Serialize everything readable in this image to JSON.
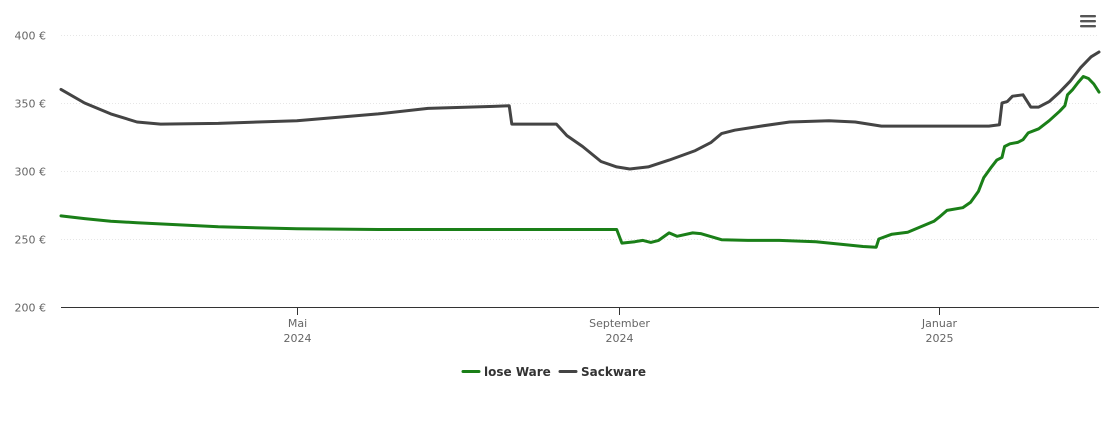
{
  "chart_data": {
    "type": "line",
    "title": "",
    "xlabel": "",
    "ylabel": "",
    "ylim": [
      200,
      400
    ],
    "y_ticks": [
      {
        "value": 200,
        "label": "200 €"
      },
      {
        "value": 250,
        "label": "250 €"
      },
      {
        "value": 300,
        "label": "300 €"
      },
      {
        "value": 350,
        "label": "350 €"
      },
      {
        "value": 400,
        "label": "400 €"
      }
    ],
    "xlim": [
      "2024-02-01",
      "2025-03-03"
    ],
    "x_ticks": [
      {
        "date": "2024-05-01",
        "month": "Mai",
        "year": "2024"
      },
      {
        "date": "2024-09-01",
        "month": "September",
        "year": "2024"
      },
      {
        "date": "2025-01-01",
        "month": "Januar",
        "year": "2025"
      }
    ],
    "grid": true,
    "legend_position": "bottom-center",
    "series": [
      {
        "name": "lose Ware",
        "color": "#1a7f18",
        "points": [
          [
            "2024-02-01",
            267
          ],
          [
            "2024-02-10",
            265
          ],
          [
            "2024-02-20",
            263
          ],
          [
            "2024-03-01",
            262
          ],
          [
            "2024-04-01",
            259
          ],
          [
            "2024-05-01",
            257.5
          ],
          [
            "2024-06-01",
            257
          ],
          [
            "2024-07-01",
            257
          ],
          [
            "2024-08-01",
            257
          ],
          [
            "2024-08-31",
            257
          ],
          [
            "2024-09-02",
            247
          ],
          [
            "2024-09-07",
            248
          ],
          [
            "2024-09-10",
            249
          ],
          [
            "2024-09-13",
            247.5
          ],
          [
            "2024-09-16",
            249
          ],
          [
            "2024-09-20",
            254.5
          ],
          [
            "2024-09-23",
            252
          ],
          [
            "2024-09-29",
            254.5
          ],
          [
            "2024-10-02",
            254
          ],
          [
            "2024-10-10",
            249.5
          ],
          [
            "2024-10-20",
            249
          ],
          [
            "2024-11-01",
            249
          ],
          [
            "2024-11-15",
            248
          ],
          [
            "2024-11-25",
            246
          ],
          [
            "2024-12-03",
            244.5
          ],
          [
            "2024-12-08",
            244
          ],
          [
            "2024-12-09",
            250
          ],
          [
            "2024-12-14",
            253.5
          ],
          [
            "2024-12-20",
            255
          ],
          [
            "2024-12-25",
            259
          ],
          [
            "2024-12-30",
            263
          ],
          [
            "2025-01-01",
            266
          ],
          [
            "2025-01-04",
            271
          ],
          [
            "2025-01-10",
            273
          ],
          [
            "2025-01-13",
            277
          ],
          [
            "2025-01-16",
            285
          ],
          [
            "2025-01-18",
            295
          ],
          [
            "2025-01-21",
            303
          ],
          [
            "2025-01-23",
            308
          ],
          [
            "2025-01-25",
            310
          ],
          [
            "2025-01-26",
            318
          ],
          [
            "2025-01-28",
            320
          ],
          [
            "2025-01-31",
            321
          ],
          [
            "2025-02-02",
            323
          ],
          [
            "2025-02-04",
            328
          ],
          [
            "2025-02-08",
            331
          ],
          [
            "2025-02-12",
            337
          ],
          [
            "2025-02-16",
            344
          ],
          [
            "2025-02-18",
            348
          ],
          [
            "2025-02-19",
            356
          ],
          [
            "2025-02-21",
            360
          ],
          [
            "2025-02-23",
            365
          ],
          [
            "2025-02-25",
            369.5
          ],
          [
            "2025-02-27",
            368
          ],
          [
            "2025-03-01",
            364
          ],
          [
            "2025-03-03",
            358
          ]
        ]
      },
      {
        "name": "Sackware",
        "color": "#444444",
        "points": [
          [
            "2024-02-01",
            360
          ],
          [
            "2024-02-10",
            350
          ],
          [
            "2024-02-20",
            342
          ],
          [
            "2024-03-01",
            336
          ],
          [
            "2024-03-10",
            334.5
          ],
          [
            "2024-04-01",
            335
          ],
          [
            "2024-05-01",
            337
          ],
          [
            "2024-06-01",
            342
          ],
          [
            "2024-06-20",
            346
          ],
          [
            "2024-07-15",
            347.5
          ],
          [
            "2024-07-21",
            348
          ],
          [
            "2024-07-22",
            334.5
          ],
          [
            "2024-08-08",
            334.5
          ],
          [
            "2024-08-12",
            326
          ],
          [
            "2024-08-18",
            318
          ],
          [
            "2024-08-25",
            307
          ],
          [
            "2024-08-31",
            303
          ],
          [
            "2024-09-05",
            301.5
          ],
          [
            "2024-09-12",
            303
          ],
          [
            "2024-09-20",
            308
          ],
          [
            "2024-09-30",
            315
          ],
          [
            "2024-10-06",
            321
          ],
          [
            "2024-10-10",
            327.5
          ],
          [
            "2024-10-15",
            330
          ],
          [
            "2024-10-25",
            333
          ],
          [
            "2024-11-05",
            336
          ],
          [
            "2024-11-20",
            337
          ],
          [
            "2024-11-30",
            336
          ],
          [
            "2024-12-10",
            333
          ],
          [
            "2024-12-20",
            333
          ],
          [
            "2025-01-01",
            333
          ],
          [
            "2025-01-10",
            333
          ],
          [
            "2025-01-20",
            333
          ],
          [
            "2025-01-24",
            334
          ],
          [
            "2025-01-25",
            350
          ],
          [
            "2025-01-27",
            351
          ],
          [
            "2025-01-29",
            355
          ],
          [
            "2025-02-02",
            356
          ],
          [
            "2025-02-05",
            347
          ],
          [
            "2025-02-08",
            347
          ],
          [
            "2025-02-12",
            351
          ],
          [
            "2025-02-16",
            358
          ],
          [
            "2025-02-20",
            366
          ],
          [
            "2025-02-24",
            376
          ],
          [
            "2025-02-28",
            384
          ],
          [
            "2025-03-03",
            387.5
          ]
        ]
      }
    ]
  },
  "menu": {
    "icon": "hamburger-menu-icon"
  }
}
